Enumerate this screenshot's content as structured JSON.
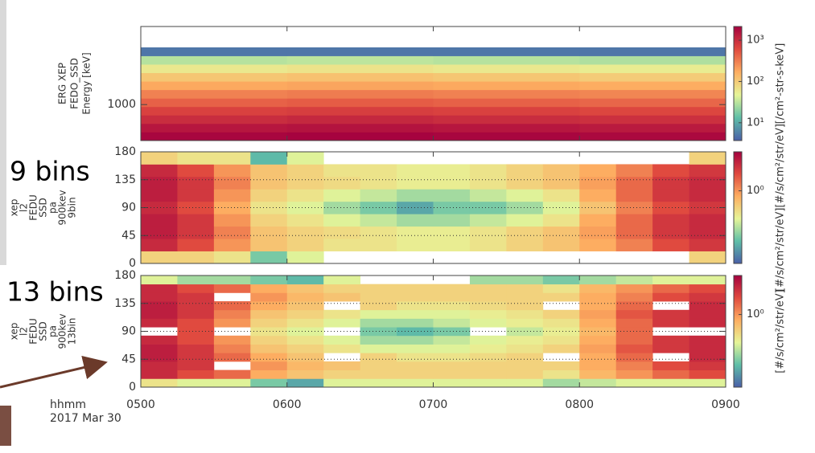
{
  "annotations": [
    "9 bins",
    "13 bins"
  ],
  "time_axis": {
    "xlim": [
      5,
      9
    ],
    "xticks": [
      {
        "value": 5,
        "label": "0500"
      },
      {
        "value": 6,
        "label": "0600"
      },
      {
        "value": 7,
        "label": "0700"
      },
      {
        "value": 8,
        "label": "0800"
      },
      {
        "value": 9,
        "label": "0900"
      }
    ],
    "xlabel": [
      "hhmm",
      "2017 Mar 30"
    ]
  },
  "colormap": [
    "#4a5fa8",
    "#5fbfa8",
    "#e6f598",
    "#fdae61",
    "#e04a3f",
    "#a5023f"
  ],
  "chart_data": [
    {
      "type": "heatmap",
      "ylabel": [
        "ERG XEP",
        "FEDO_SSD",
        "Energy [keV]"
      ],
      "log_y": true,
      "ylim": [
        500,
        4500
      ],
      "yticks": [
        1000
      ],
      "x_bins": [
        5,
        6,
        7,
        8,
        9
      ],
      "y_bins": [
        500,
        589,
        693,
        816,
        960,
        1130,
        1331,
        1567,
        1845,
        2172,
        2557,
        3010
      ],
      "z": [
        [
          2000,
          2100,
          2000,
          1900
        ],
        [
          1500,
          1600,
          1500,
          1400
        ],
        [
          1000,
          1100,
          1000,
          950
        ],
        [
          700,
          750,
          700,
          650
        ],
        [
          450,
          480,
          450,
          420
        ],
        [
          300,
          320,
          300,
          280
        ],
        [
          180,
          190,
          180,
          170
        ],
        [
          110,
          120,
          110,
          100
        ],
        [
          60,
          65,
          60,
          55
        ],
        [
          30,
          32,
          30,
          28
        ],
        [
          5,
          5,
          5,
          5
        ]
      ],
      "zlim": [
        3.7,
        2150
      ],
      "zticks": [
        {
          "value": 10,
          "label": "10¹"
        },
        {
          "value": 100,
          "label": "10²"
        },
        {
          "value": 1000,
          "label": "10³"
        }
      ],
      "zlabel": "[/cm²-str-s-keV]"
    },
    {
      "type": "heatmap",
      "ylabel": [
        "xep",
        "l2",
        "FEDU",
        "SSD",
        "pa",
        "900kev",
        "9bin"
      ],
      "grid": true,
      "ylim": [
        0,
        180
      ],
      "yticks": [
        0,
        45,
        90,
        135,
        180
      ],
      "x_bins": [
        5,
        5.25,
        5.5,
        5.75,
        6,
        6.25,
        6.5,
        6.75,
        7,
        7.25,
        7.5,
        7.75,
        8,
        8.25,
        8.5,
        8.75,
        9
      ],
      "y_bins": [
        0,
        20,
        40,
        60,
        80,
        100,
        120,
        140,
        160,
        180
      ],
      "z": [
        [
          0.5,
          0.5,
          0.4,
          0.15,
          0.3,
          null,
          null,
          null,
          null,
          null,
          null,
          null,
          null,
          null,
          null,
          0.5
        ],
        [
          3,
          2,
          1,
          0.6,
          0.5,
          0.4,
          0.4,
          0.35,
          0.35,
          0.4,
          0.5,
          0.6,
          0.8,
          1.2,
          2,
          2.5
        ],
        [
          3.5,
          2.5,
          1.2,
          0.6,
          0.5,
          0.45,
          0.4,
          0.35,
          0.35,
          0.4,
          0.5,
          0.6,
          0.9,
          1.5,
          2.5,
          3
        ],
        [
          3.5,
          2.5,
          1,
          0.5,
          0.4,
          0.3,
          0.25,
          0.2,
          0.2,
          0.25,
          0.3,
          0.4,
          0.8,
          1.5,
          2.5,
          3
        ],
        [
          3,
          2,
          0.8,
          0.4,
          0.3,
          0.2,
          0.15,
          0.1,
          0.15,
          0.15,
          0.2,
          0.3,
          0.6,
          1.2,
          2,
          2.5
        ],
        [
          3.5,
          2.5,
          1,
          0.5,
          0.4,
          0.3,
          0.25,
          0.2,
          0.2,
          0.25,
          0.3,
          0.4,
          0.8,
          1.5,
          2.5,
          3
        ],
        [
          3.5,
          2.5,
          1.2,
          0.6,
          0.5,
          0.45,
          0.4,
          0.35,
          0.35,
          0.4,
          0.5,
          0.6,
          0.9,
          1.5,
          2.5,
          3
        ],
        [
          3,
          2,
          1,
          0.6,
          0.5,
          0.4,
          0.4,
          0.35,
          0.35,
          0.4,
          0.5,
          0.6,
          0.8,
          1.2,
          2,
          2.5
        ],
        [
          0.5,
          0.4,
          0.4,
          0.12,
          0.3,
          null,
          null,
          null,
          null,
          null,
          null,
          null,
          null,
          null,
          null,
          0.5
        ]
      ],
      "zlim": [
        0.05,
        5
      ],
      "zticks": [
        {
          "value": 1,
          "label": "10⁰"
        }
      ],
      "zlabel": "[#/s/cm²/str/eV][#/s/cm²/str/eV]"
    },
    {
      "type": "heatmap",
      "ylabel": [
        "xep",
        "l2",
        "FEDU",
        "SSD",
        "pa",
        "900kev",
        "13bin"
      ],
      "grid": true,
      "ylim": [
        0,
        180
      ],
      "yticks": [
        0,
        45,
        90,
        135,
        180
      ],
      "x_bins": [
        5,
        5.25,
        5.5,
        5.75,
        6,
        6.25,
        6.5,
        6.75,
        7,
        7.25,
        7.5,
        7.75,
        8,
        8.25,
        8.5,
        8.75,
        9
      ],
      "y_bins": [
        0,
        13.8,
        27.7,
        41.5,
        55.4,
        69.2,
        83.1,
        96.9,
        110.8,
        124.6,
        138.5,
        152.3,
        166.2,
        180
      ],
      "z": [
        [
          0.4,
          0.3,
          0.3,
          0.15,
          0.1,
          0.3,
          0.3,
          0.3,
          0.3,
          0.3,
          0.3,
          0.2,
          0.25,
          0.3,
          0.3,
          0.3
        ],
        [
          3,
          2,
          1.5,
          0.8,
          0.6,
          0.5,
          0.5,
          0.5,
          0.5,
          0.5,
          0.5,
          0.4,
          0.7,
          1,
          1.5,
          2
        ],
        [
          3,
          2.5,
          null,
          1,
          0.7,
          0.6,
          0.5,
          0.5,
          0.5,
          0.5,
          0.5,
          0.5,
          0.8,
          1.2,
          2,
          2.5
        ],
        [
          3.5,
          2.5,
          1.5,
          0.8,
          0.6,
          null,
          0.5,
          0.4,
          0.4,
          0.45,
          0.5,
          null,
          0.8,
          1.5,
          null,
          3
        ],
        [
          3.5,
          2.5,
          1.2,
          0.6,
          0.5,
          0.4,
          0.3,
          0.3,
          0.3,
          0.35,
          0.4,
          0.5,
          0.9,
          1.8,
          2.5,
          3
        ],
        [
          3,
          2,
          1,
          0.5,
          0.4,
          0.3,
          0.2,
          0.2,
          0.25,
          0.3,
          0.35,
          0.4,
          0.8,
          1.5,
          2.5,
          3
        ],
        [
          null,
          2,
          null,
          0.4,
          0.3,
          null,
          0.15,
          0.12,
          0.15,
          null,
          0.25,
          0.35,
          0.7,
          1.5,
          null,
          null
        ],
        [
          3,
          2,
          1,
          0.5,
          0.4,
          0.3,
          0.2,
          0.2,
          0.25,
          0.3,
          0.35,
          0.4,
          0.8,
          1.5,
          2.5,
          3
        ],
        [
          3.5,
          2.5,
          1.2,
          0.6,
          0.5,
          0.4,
          0.3,
          0.3,
          0.3,
          0.35,
          0.4,
          0.5,
          0.9,
          1.8,
          2.5,
          3
        ],
        [
          3.5,
          2.5,
          1.5,
          0.8,
          0.6,
          null,
          0.5,
          0.4,
          0.4,
          0.45,
          0.5,
          null,
          0.8,
          1.5,
          null,
          3
        ],
        [
          3,
          2.5,
          null,
          1,
          0.7,
          0.6,
          0.5,
          0.5,
          0.5,
          0.5,
          0.5,
          0.5,
          0.8,
          1.2,
          2,
          2.5
        ],
        [
          3,
          2,
          1.5,
          0.8,
          0.6,
          0.5,
          0.5,
          0.5,
          0.5,
          0.5,
          0.5,
          0.4,
          0.7,
          1,
          1.5,
          2
        ],
        [
          0.3,
          0.2,
          0.2,
          0.15,
          0.12,
          0.3,
          null,
          null,
          null,
          0.2,
          0.2,
          0.15,
          0.2,
          0.25,
          0.3,
          0.3
        ]
      ],
      "zlim": [
        0.05,
        5
      ],
      "zticks": [
        {
          "value": 1,
          "label": "10⁰"
        }
      ],
      "zlabel": "[#/s/cm²/str/eV]"
    }
  ]
}
